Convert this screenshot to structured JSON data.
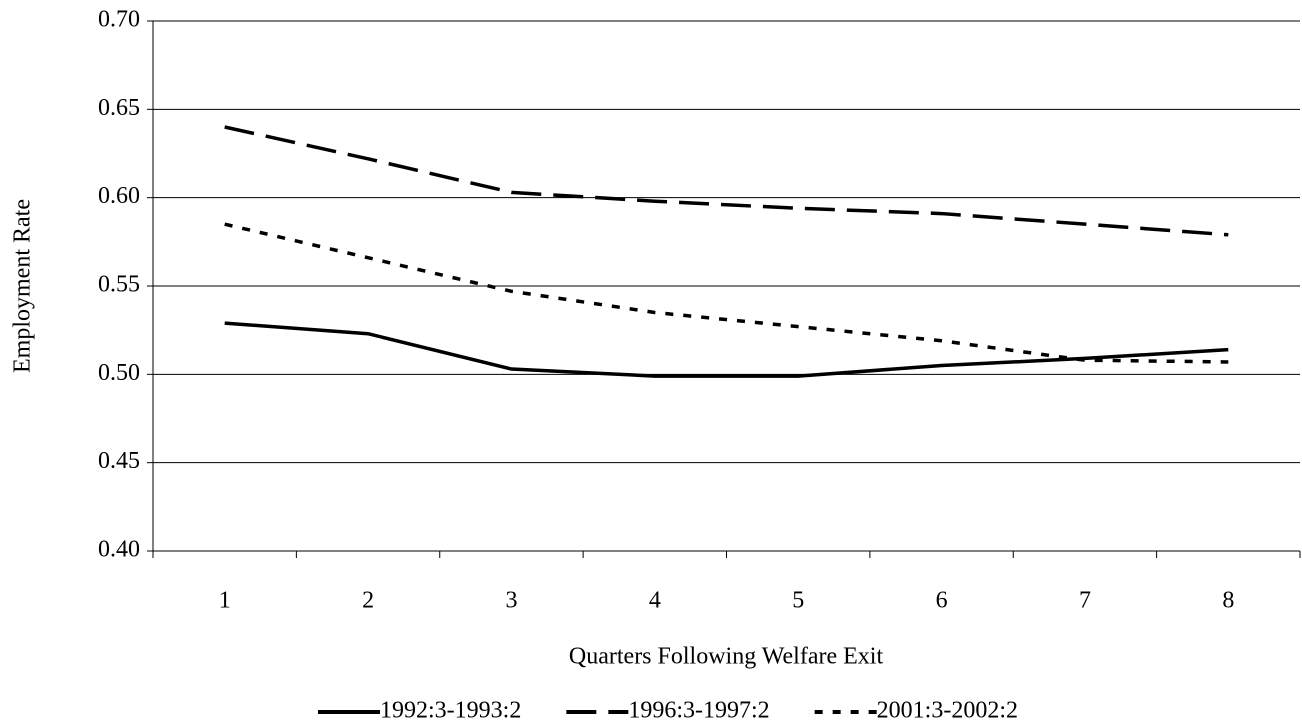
{
  "chart_data": {
    "type": "line",
    "x_label": "Quarters Following Welfare Exit",
    "y_label": "Employment Rate",
    "categories": [
      "1",
      "2",
      "3",
      "4",
      "5",
      "6",
      "7",
      "8"
    ],
    "series": [
      {
        "name": "1992:3-1993:2",
        "color": "#000000",
        "dash": "solid",
        "values": [
          0.529,
          0.523,
          0.503,
          0.499,
          0.499,
          0.505,
          0.509,
          0.514
        ]
      },
      {
        "name": "1996:3-1997:2",
        "color": "#000000",
        "dash": "dashed",
        "values": [
          0.64,
          0.622,
          0.603,
          0.598,
          0.594,
          0.591,
          0.585,
          0.579
        ]
      },
      {
        "name": "2001:3-2002:2",
        "color": "#000000",
        "dash": "dotted",
        "values": [
          0.585,
          0.566,
          0.547,
          0.535,
          0.527,
          0.519,
          0.508,
          0.507
        ]
      }
    ],
    "ylim": [
      0.4,
      0.7
    ],
    "yticks": [
      {
        "value": 0.4,
        "label": "0.40"
      },
      {
        "value": 0.45,
        "label": "0.45"
      },
      {
        "value": 0.5,
        "label": "0.50"
      },
      {
        "value": 0.55,
        "label": "0.55"
      },
      {
        "value": 0.6,
        "label": "0.60"
      },
      {
        "value": 0.65,
        "label": "0.65"
      },
      {
        "value": 0.7,
        "label": "0.70"
      }
    ],
    "grid": true,
    "legend": "bottom"
  }
}
